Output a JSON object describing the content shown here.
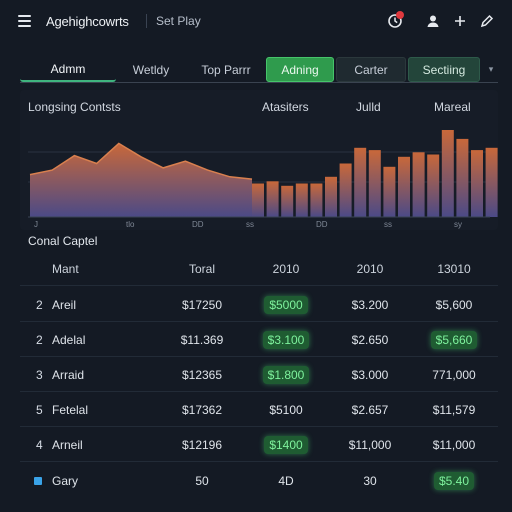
{
  "header": {
    "title": "Agehighcowrts",
    "subtitle": "Set Play",
    "icons": [
      "clock-icon",
      "user-icon",
      "plus-icon",
      "pencil-icon"
    ],
    "alert_color": "#e0393e"
  },
  "tabs": [
    {
      "label": "Admm",
      "style": "active"
    },
    {
      "label": "Wetldy",
      "style": "plain"
    },
    {
      "label": "Top Parrr",
      "style": "plain"
    },
    {
      "label": "Adning",
      "style": "green"
    },
    {
      "label": "Carter",
      "style": "dark"
    },
    {
      "label": "Sectiing",
      "style": "darkgreen"
    }
  ],
  "chart_data": {
    "type": "line",
    "title": "Longsing Contsts",
    "labels": [
      "Atasiters",
      "Julld",
      "Mareal"
    ],
    "tick_labels": [
      "J",
      "tlo",
      "DD",
      "ss",
      "DD",
      "ss",
      "sy"
    ],
    "area_series": [
      {
        "x": 0,
        "y": 38
      },
      {
        "x": 1,
        "y": 42
      },
      {
        "x": 2,
        "y": 55
      },
      {
        "x": 3,
        "y": 48
      },
      {
        "x": 4,
        "y": 66
      },
      {
        "x": 5,
        "y": 54
      },
      {
        "x": 6,
        "y": 44
      },
      {
        "x": 7,
        "y": 50
      },
      {
        "x": 8,
        "y": 42
      },
      {
        "x": 9,
        "y": 36
      },
      {
        "x": 10,
        "y": 34
      }
    ],
    "bar_values": [
      30,
      32,
      28,
      30,
      30,
      36,
      48,
      62,
      60,
      45,
      54,
      58,
      56,
      78,
      70,
      60,
      62
    ],
    "ylim": [
      0,
      100
    ],
    "colors": {
      "top": "#c8683a",
      "bottom": "#4b4a87"
    }
  },
  "section": {
    "title": "Conal Captel"
  },
  "table": {
    "headers": [
      "Mant",
      "Toral",
      "2010",
      "2010",
      "13010"
    ],
    "rows": [
      {
        "idx": "2",
        "name": "Areil",
        "total": "$17250",
        "c1": "$5000",
        "c1_hl": true,
        "c2": "$3.200",
        "c2_hl": false,
        "c3": "$5,600",
        "c3_hl": false
      },
      {
        "idx": "2",
        "name": "Adelal",
        "total": "$11.369",
        "c1": "$3.100",
        "c1_hl": true,
        "c2": "$2.650",
        "c2_hl": false,
        "c3": "$5,660",
        "c3_hl": true
      },
      {
        "idx": "3",
        "name": "Arraid",
        "total": "$12365",
        "c1": "$1.800",
        "c1_hl": true,
        "c2": "$3.000",
        "c2_hl": false,
        "c3": "771,000",
        "c3_hl": false
      },
      {
        "idx": "5",
        "name": "Fetelal",
        "total": "$17362",
        "c1": "$5100",
        "c1_hl": false,
        "c2": "$2.657",
        "c2_hl": false,
        "c3": "$11,579",
        "c3_hl": false
      },
      {
        "idx": "4",
        "name": "Arneil",
        "total": "$12196",
        "c1": "$1400",
        "c1_hl": true,
        "c2": "$11,000",
        "c2_hl": false,
        "c3": "$11,000",
        "c3_hl": false
      }
    ],
    "footer": {
      "name": "Gary",
      "total": "50",
      "c1": "4D",
      "c2": "30",
      "c3": "$5.40",
      "c3_hl": true
    }
  }
}
